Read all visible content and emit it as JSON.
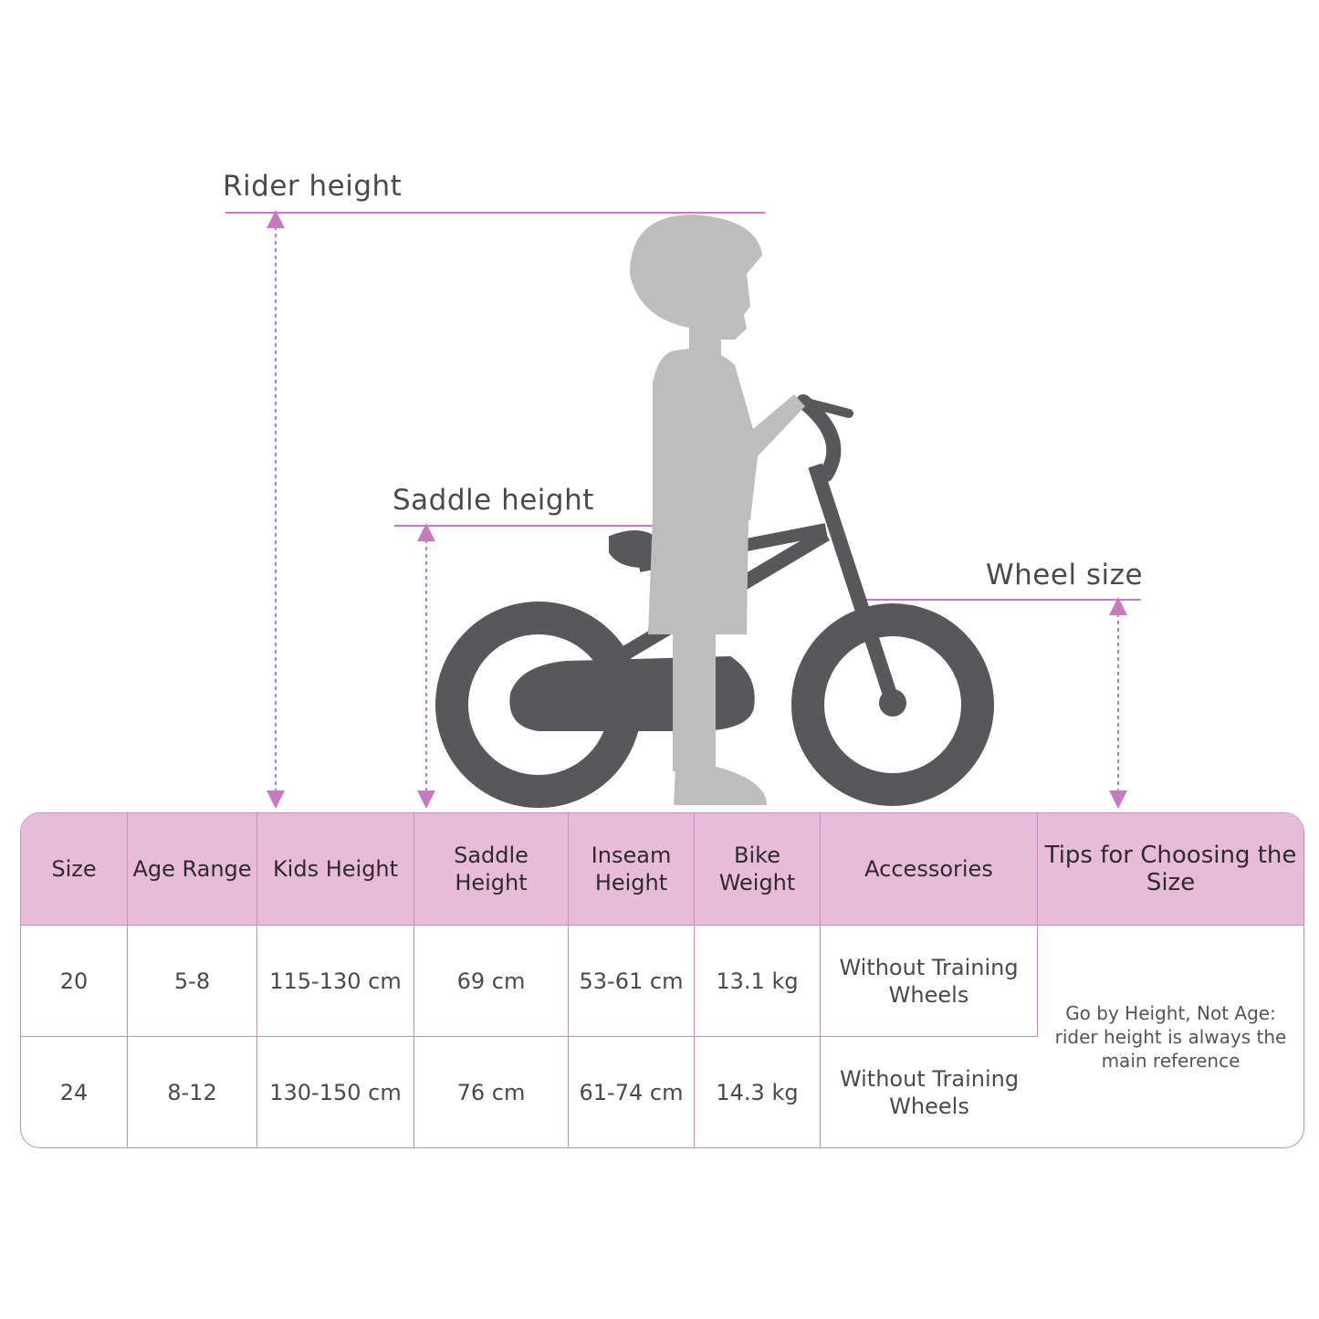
{
  "labels": {
    "rider_height": "Rider height",
    "saddle_height": "Saddle height",
    "wheel_size": "Wheel size"
  },
  "colors": {
    "accent_line": "#c77bbf",
    "header_bg": "#e8bcd8",
    "bike": "#58585a",
    "child_silhouette": "#bdbdbd"
  },
  "table": {
    "headers": [
      "Size",
      "Age Range",
      "Kids Height",
      "Saddle Height",
      "Inseam Height",
      "Bike Weight",
      "Accessories",
      "Tips for Choosing the Size"
    ],
    "rows": [
      [
        "20",
        "5-8",
        "115-130 cm",
        "69 cm",
        "53-61 cm",
        "13.1 kg",
        "Without Training Wheels"
      ],
      [
        "24",
        "8-12",
        "130-150 cm",
        "76 cm",
        "61-74 cm",
        "14.3 kg",
        "Without Training Wheels"
      ]
    ],
    "tip": "Go by Height, Not Age: rider height is always the main reference"
  }
}
